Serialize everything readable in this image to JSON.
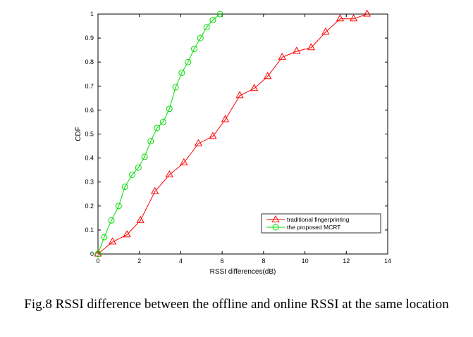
{
  "caption": "Fig.8 RSSI difference between the offline and online RSSI at the same location",
  "chart_data": {
    "type": "line",
    "xlabel": "RSSI differences(dB)",
    "ylabel": "CDF",
    "xlim": [
      0,
      14
    ],
    "ylim": [
      0,
      1
    ],
    "xticks": [
      0,
      2,
      4,
      6,
      8,
      10,
      12,
      14
    ],
    "yticks": [
      0,
      0.1,
      0.2,
      0.3,
      0.4,
      0.5,
      0.6,
      0.7,
      0.8,
      0.9,
      1
    ],
    "xtick_labels": [
      "0",
      "2",
      "4",
      "6",
      "8",
      "10",
      "12",
      "14"
    ],
    "ytick_labels": [
      "0",
      "0.1",
      "0.2",
      "0.3",
      "0.4",
      "0.5",
      "0.6",
      "0.7",
      "0.8",
      "0.9",
      "1"
    ],
    "grid": false,
    "legend_position": "bottom-right",
    "series": [
      {
        "name": "traditional fingerprinting",
        "color": "#ff0000",
        "marker": "triangle",
        "x": [
          0.0,
          0.7,
          1.4,
          2.05,
          2.75,
          3.45,
          4.15,
          4.85,
          5.55,
          6.15,
          6.85,
          7.55,
          8.2,
          8.9,
          9.6,
          10.3,
          11.0,
          11.7,
          12.35,
          13.0
        ],
        "y": [
          0.0,
          0.05,
          0.08,
          0.14,
          0.26,
          0.33,
          0.38,
          0.46,
          0.49,
          0.56,
          0.66,
          0.69,
          0.74,
          0.82,
          0.845,
          0.86,
          0.925,
          0.98,
          0.98,
          1.0
        ]
      },
      {
        "name": "the proposed MCRT",
        "color": "#00dd00",
        "marker": "circle",
        "x": [
          0.0,
          0.3,
          0.65,
          1.0,
          1.3,
          1.65,
          1.95,
          2.25,
          2.55,
          2.85,
          3.15,
          3.45,
          3.75,
          4.05,
          4.35,
          4.65,
          4.95,
          5.25,
          5.55,
          5.9
        ],
        "y": [
          0.0,
          0.07,
          0.14,
          0.2,
          0.28,
          0.33,
          0.36,
          0.405,
          0.47,
          0.525,
          0.55,
          0.605,
          0.695,
          0.755,
          0.8,
          0.855,
          0.9,
          0.945,
          0.975,
          1.0
        ]
      }
    ]
  }
}
